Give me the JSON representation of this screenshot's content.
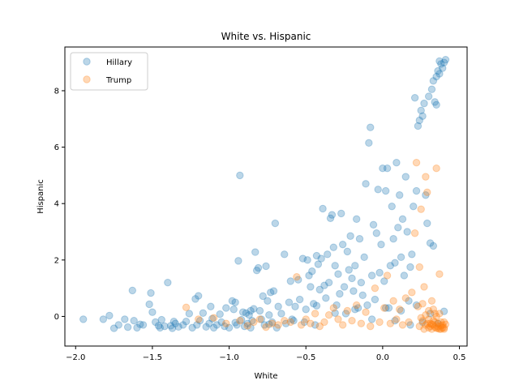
{
  "chart_data": {
    "type": "scatter",
    "title": "White vs. Hispanic",
    "xlabel": "White",
    "ylabel": "Hispanic",
    "xlim": [
      -2.07,
      0.55
    ],
    "ylim": [
      -1.05,
      9.55
    ],
    "xticks": [
      -2.0,
      -1.5,
      -1.0,
      -0.5,
      0.0,
      0.5
    ],
    "xtick_labels": [
      "−2.0",
      "−1.5",
      "−1.0",
      "−0.5",
      "0.0",
      "0.5"
    ],
    "yticks": [
      0,
      2,
      4,
      6,
      8
    ],
    "ytick_labels": [
      "0",
      "2",
      "4",
      "6",
      "8"
    ],
    "grid": false,
    "legend_position": "top-left",
    "series": [
      {
        "name": "Hillary",
        "color": "#1f77b4",
        "points": [
          [
            -1.95,
            -0.1
          ],
          [
            -1.82,
            -0.1
          ],
          [
            -1.78,
            0.03
          ],
          [
            -1.75,
            -0.42
          ],
          [
            -1.72,
            -0.3
          ],
          [
            -1.68,
            -0.1
          ],
          [
            -1.66,
            -0.38
          ],
          [
            -1.63,
            0.92
          ],
          [
            -1.62,
            -0.15
          ],
          [
            -1.6,
            -0.4
          ],
          [
            -1.56,
            -0.3
          ],
          [
            -1.52,
            0.43
          ],
          [
            -1.51,
            0.83
          ],
          [
            -1.5,
            0.15
          ],
          [
            -1.48,
            -0.2
          ],
          [
            -1.46,
            -0.33
          ],
          [
            -1.45,
            -0.4
          ],
          [
            -1.44,
            -0.12
          ],
          [
            -1.42,
            -0.35
          ],
          [
            -1.4,
            1.2
          ],
          [
            -1.38,
            -0.33
          ],
          [
            -1.37,
            -0.42
          ],
          [
            -1.35,
            -0.25
          ],
          [
            -1.33,
            -0.37
          ],
          [
            -1.3,
            -0.3
          ],
          [
            -1.28,
            -0.18
          ],
          [
            -1.26,
            0.1
          ],
          [
            -1.24,
            -0.4
          ],
          [
            -1.22,
            0.62
          ],
          [
            -1.21,
            -0.3
          ],
          [
            -1.2,
            0.73
          ],
          [
            -1.19,
            -0.15
          ],
          [
            -1.17,
            0.12
          ],
          [
            -1.15,
            -0.37
          ],
          [
            -1.13,
            -0.25
          ],
          [
            -1.12,
            0.35
          ],
          [
            -1.1,
            -0.4
          ],
          [
            -1.08,
            -0.3
          ],
          [
            -1.06,
            0.08
          ],
          [
            -1.05,
            -0.2
          ],
          [
            -1.03,
            -0.35
          ],
          [
            -1.02,
            0.3
          ],
          [
            -1.0,
            -0.4
          ],
          [
            -0.98,
            0.55
          ],
          [
            -0.97,
            0.25
          ],
          [
            -0.96,
            0.5
          ],
          [
            -0.95,
            -0.3
          ],
          [
            -0.94,
            1.97
          ],
          [
            -0.93,
            5.0
          ],
          [
            -0.92,
            -0.12
          ],
          [
            -0.91,
            0.15
          ],
          [
            -0.9,
            -0.35
          ],
          [
            -0.89,
            0.12
          ],
          [
            -0.88,
            -0.25
          ],
          [
            -0.87,
            0.05
          ],
          [
            -0.86,
            -0.4
          ],
          [
            -0.85,
            -0.15
          ],
          [
            -0.84,
            0.27
          ],
          [
            -0.83,
            2.28
          ],
          [
            -0.82,
            1.63
          ],
          [
            -0.81,
            1.72
          ],
          [
            -0.8,
            0.2
          ],
          [
            -0.79,
            -0.1
          ],
          [
            -0.78,
            0.72
          ],
          [
            -0.77,
            -0.3
          ],
          [
            -0.76,
            1.78
          ],
          [
            -0.75,
            0.55
          ],
          [
            -0.74,
            0.05
          ],
          [
            -0.73,
            0.85
          ],
          [
            -0.72,
            -0.2
          ],
          [
            -0.71,
            0.9
          ],
          [
            -0.7,
            3.3
          ],
          [
            -0.69,
            -0.4
          ],
          [
            -0.68,
            0.35
          ],
          [
            -0.66,
            0.1
          ],
          [
            -0.64,
            2.2
          ],
          [
            -0.63,
            -0.25
          ],
          [
            -0.61,
            0.5
          ],
          [
            -0.6,
            1.25
          ],
          [
            -0.59,
            -0.1
          ],
          [
            -0.57,
            0.35
          ],
          [
            -0.55,
            1.3
          ],
          [
            -0.54,
            0.6
          ],
          [
            -0.52,
            2.05
          ],
          [
            -0.51,
            -0.2
          ],
          [
            -0.5,
            0.25
          ],
          [
            -0.49,
            2.0
          ],
          [
            -0.48,
            1.45
          ],
          [
            -0.47,
            1.05
          ],
          [
            -0.46,
            1.6
          ],
          [
            -0.45,
            0.45
          ],
          [
            -0.44,
            -0.3
          ],
          [
            -0.43,
            2.15
          ],
          [
            -0.42,
            1.85
          ],
          [
            -0.41,
            0.95
          ],
          [
            -0.4,
            2.05
          ],
          [
            -0.39,
            3.82
          ],
          [
            -0.38,
            1.1
          ],
          [
            -0.37,
            0.65
          ],
          [
            -0.36,
            2.2
          ],
          [
            -0.35,
            1.2
          ],
          [
            -0.34,
            3.48
          ],
          [
            -0.33,
            3.6
          ],
          [
            -0.32,
            2.45
          ],
          [
            -0.31,
            1.8
          ],
          [
            -0.3,
            0.4
          ],
          [
            -0.29,
            1.5
          ],
          [
            -0.28,
            0.8
          ],
          [
            -0.27,
            3.65
          ],
          [
            -0.26,
            2.55
          ],
          [
            -0.25,
            1.05
          ],
          [
            -0.24,
            0.1
          ],
          [
            -0.23,
            2.3
          ],
          [
            -0.22,
            1.65
          ],
          [
            -0.21,
            2.85
          ],
          [
            -0.2,
            1.35
          ],
          [
            -0.19,
            0.9
          ],
          [
            -0.18,
            1.8
          ],
          [
            -0.17,
            3.45
          ],
          [
            -0.16,
            0.3
          ],
          [
            -0.15,
            2.75
          ],
          [
            -0.14,
            1.2
          ],
          [
            -0.13,
            0.75
          ],
          [
            -0.12,
            2.1
          ],
          [
            -0.11,
            4.7
          ],
          [
            -0.1,
            0.4
          ],
          [
            -0.09,
            6.15
          ],
          [
            -0.08,
            6.7
          ],
          [
            -0.07,
            1.45
          ],
          [
            -0.06,
            3.25
          ],
          [
            -0.05,
            0.6
          ],
          [
            -0.04,
            2.95
          ],
          [
            -0.03,
            4.5
          ],
          [
            -0.02,
            1.55
          ],
          [
            -0.01,
            2.55
          ],
          [
            0.0,
            5.25
          ],
          [
            0.01,
            1.25
          ],
          [
            0.02,
            4.45
          ],
          [
            0.03,
            5.25
          ],
          [
            0.04,
            0.3
          ],
          [
            0.05,
            1.8
          ],
          [
            0.06,
            3.9
          ],
          [
            0.07,
            2.75
          ],
          [
            0.08,
            1.9
          ],
          [
            0.09,
            5.45
          ],
          [
            0.1,
            3.15
          ],
          [
            0.11,
            4.3
          ],
          [
            0.12,
            2.1
          ],
          [
            0.13,
            3.45
          ],
          [
            0.14,
            1.45
          ],
          [
            0.15,
            4.95
          ],
          [
            0.16,
            3.0
          ],
          [
            0.17,
            0.55
          ],
          [
            0.18,
            1.75
          ],
          [
            0.19,
            2.2
          ],
          [
            0.2,
            3.9
          ],
          [
            0.21,
            7.75
          ],
          [
            0.22,
            4.45
          ],
          [
            0.23,
            6.75
          ],
          [
            0.24,
            6.95
          ],
          [
            0.25,
            7.3
          ],
          [
            0.26,
            7.1
          ],
          [
            0.27,
            7.55
          ],
          [
            0.28,
            4.3
          ],
          [
            0.29,
            3.3
          ],
          [
            0.3,
            7.8
          ],
          [
            0.31,
            2.6
          ],
          [
            0.32,
            8.05
          ],
          [
            0.33,
            8.35
          ],
          [
            0.34,
            7.6
          ],
          [
            0.35,
            8.5
          ],
          [
            0.36,
            8.7
          ],
          [
            0.37,
            9.05
          ],
          [
            0.38,
            8.95
          ],
          [
            0.39,
            8.8
          ],
          [
            0.4,
            9.0
          ],
          [
            0.41,
            9.1
          ],
          [
            0.33,
            2.5
          ],
          [
            0.35,
            7.5
          ],
          [
            0.37,
            8.6
          ],
          [
            -1.58,
            -0.28
          ],
          [
            -1.36,
            -0.18
          ],
          [
            -1.11,
            -0.08
          ],
          [
            -0.96,
            -0.22
          ],
          [
            -0.86,
            0.2
          ],
          [
            -0.74,
            -0.28
          ],
          [
            -0.58,
            -0.15
          ],
          [
            -0.43,
            0.38
          ],
          [
            -0.31,
            0.12
          ],
          [
            -0.18,
            0.25
          ],
          [
            -0.07,
            -0.1
          ],
          [
            0.02,
            0.3
          ],
          [
            0.08,
            -0.15
          ],
          [
            0.12,
            0.2
          ],
          [
            0.18,
            -0.3
          ],
          [
            0.22,
            0.4
          ],
          [
            0.26,
            -0.2
          ],
          [
            0.31,
            0.1
          ],
          [
            0.36,
            -0.25
          ],
          [
            0.4,
            0.18
          ]
        ]
      },
      {
        "name": "Trump",
        "color": "#ff7f0e",
        "points": [
          [
            -1.28,
            0.32
          ],
          [
            -1.2,
            -0.1
          ],
          [
            -1.1,
            -0.05
          ],
          [
            -1.02,
            -0.25
          ],
          [
            -0.93,
            -0.15
          ],
          [
            -0.88,
            -0.33
          ],
          [
            -0.84,
            -0.2
          ],
          [
            -0.8,
            -0.1
          ],
          [
            -0.76,
            -0.38
          ],
          [
            -0.72,
            -0.25
          ],
          [
            -0.68,
            -0.3
          ],
          [
            -0.64,
            -0.15
          ],
          [
            -0.6,
            -0.2
          ],
          [
            -0.56,
            1.4
          ],
          [
            -0.53,
            -0.3
          ],
          [
            -0.5,
            -0.1
          ],
          [
            -0.47,
            -0.25
          ],
          [
            -0.44,
            0.1
          ],
          [
            -0.41,
            -0.35
          ],
          [
            -0.38,
            -0.2
          ],
          [
            -0.35,
            0.05
          ],
          [
            -0.32,
            0.3
          ],
          [
            -0.29,
            -0.1
          ],
          [
            -0.26,
            -0.3
          ],
          [
            -0.23,
            0.2
          ],
          [
            -0.2,
            -0.15
          ],
          [
            -0.17,
            0.4
          ],
          [
            -0.14,
            -0.25
          ],
          [
            -0.11,
            0.15
          ],
          [
            -0.08,
            -0.35
          ],
          [
            -0.05,
            1.0
          ],
          [
            -0.02,
            -0.2
          ],
          [
            0.01,
            0.3
          ],
          [
            0.03,
            1.45
          ],
          [
            0.05,
            -0.25
          ],
          [
            0.07,
            0.55
          ],
          [
            0.09,
            -0.1
          ],
          [
            0.11,
            0.25
          ],
          [
            0.13,
            -0.3
          ],
          [
            0.15,
            0.65
          ],
          [
            0.17,
            -0.2
          ],
          [
            0.19,
            0.85
          ],
          [
            0.21,
            2.95
          ],
          [
            0.22,
            5.45
          ],
          [
            0.23,
            0.35
          ],
          [
            0.24,
            1.75
          ],
          [
            0.25,
            3.8
          ],
          [
            0.26,
            -0.15
          ],
          [
            0.27,
            1.05
          ],
          [
            0.28,
            4.95
          ],
          [
            0.29,
            4.4
          ],
          [
            0.3,
            0.2
          ],
          [
            0.31,
            -0.25
          ],
          [
            0.32,
            0.55
          ],
          [
            0.33,
            -0.3
          ],
          [
            0.34,
            0.1
          ],
          [
            0.35,
            5.25
          ],
          [
            0.36,
            -0.35
          ],
          [
            0.37,
            1.5
          ],
          [
            0.38,
            -0.2
          ],
          [
            0.39,
            -0.3
          ],
          [
            0.4,
            -0.4
          ],
          [
            0.41,
            -0.28
          ],
          [
            0.4,
            -0.45
          ],
          [
            0.39,
            -0.4
          ],
          [
            0.38,
            -0.33
          ],
          [
            0.37,
            -0.45
          ],
          [
            0.36,
            -0.25
          ],
          [
            0.35,
            -0.42
          ],
          [
            0.34,
            -0.38
          ],
          [
            0.33,
            -0.15
          ],
          [
            0.32,
            -0.45
          ],
          [
            0.31,
            -0.35
          ],
          [
            0.3,
            -0.4
          ],
          [
            0.29,
            -0.25
          ],
          [
            0.28,
            -0.3
          ],
          [
            0.27,
            -0.45
          ],
          [
            0.26,
            0.45
          ],
          [
            0.25,
            -0.05
          ],
          [
            0.24,
            -0.35
          ],
          [
            0.4,
            -0.2
          ],
          [
            0.38,
            -0.45
          ],
          [
            0.36,
            -0.42
          ],
          [
            0.34,
            -0.2
          ],
          [
            0.32,
            -0.28
          ],
          [
            0.3,
            -0.1
          ],
          [
            0.28,
            0.05
          ],
          [
            0.35,
            0.0
          ],
          [
            0.33,
            0.25
          ],
          [
            0.37,
            0.1
          ]
        ]
      }
    ]
  }
}
